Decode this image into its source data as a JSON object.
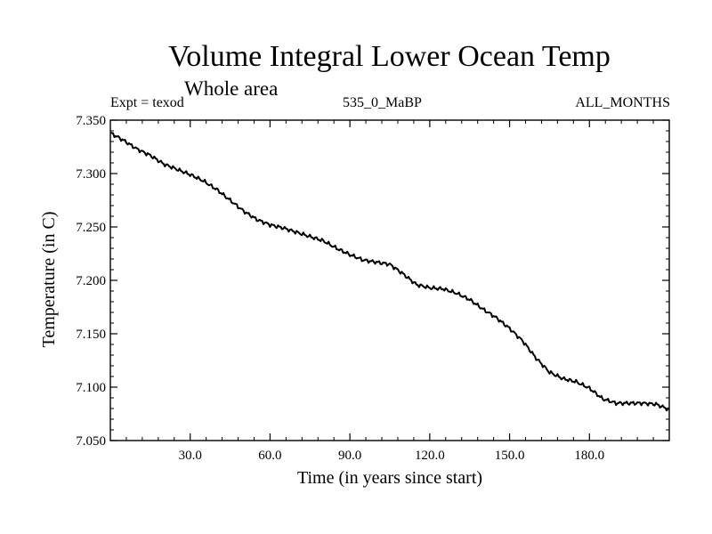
{
  "chart_data": {
    "type": "line",
    "title": "Volume Integral Lower Ocean Temp",
    "subtitle": "Whole area",
    "experiment": "Expt = texod",
    "run_label": "535_0_MaBP",
    "period": "ALL_MONTHS",
    "xlabel": "Time (in years since start)",
    "ylabel": "Temperature (in C)",
    "xlim": [
      0,
      210
    ],
    "ylim": [
      7.05,
      7.35
    ],
    "x_ticks": [
      30,
      60,
      90,
      120,
      150,
      180
    ],
    "x_tick_labels": [
      "30.0",
      "60.0",
      "90.0",
      "120.0",
      "150.0",
      "180.0"
    ],
    "y_ticks": [
      7.05,
      7.1,
      7.15,
      7.2,
      7.25,
      7.3,
      7.35
    ],
    "y_tick_labels": [
      "7.050",
      "7.100",
      "7.150",
      "7.200",
      "7.250",
      "7.300",
      "7.350"
    ],
    "grid": false,
    "series": [
      {
        "name": "Volume integral lower ocean temperature",
        "x": [
          0,
          5,
          10,
          15,
          20,
          25,
          30,
          35,
          40,
          45,
          50,
          55,
          60,
          65,
          70,
          75,
          80,
          85,
          90,
          95,
          100,
          105,
          110,
          115,
          120,
          125,
          130,
          135,
          140,
          145,
          150,
          155,
          160,
          165,
          170,
          175,
          180,
          185,
          190,
          195,
          200,
          205,
          210
        ],
        "values": [
          7.338,
          7.331,
          7.323,
          7.317,
          7.309,
          7.304,
          7.299,
          7.293,
          7.285,
          7.275,
          7.265,
          7.257,
          7.252,
          7.249,
          7.245,
          7.241,
          7.237,
          7.23,
          7.224,
          7.219,
          7.217,
          7.215,
          7.206,
          7.196,
          7.193,
          7.192,
          7.188,
          7.182,
          7.173,
          7.165,
          7.155,
          7.143,
          7.127,
          7.114,
          7.108,
          7.105,
          7.099,
          7.089,
          7.085,
          7.085,
          7.085,
          7.084,
          7.079
        ]
      }
    ]
  }
}
